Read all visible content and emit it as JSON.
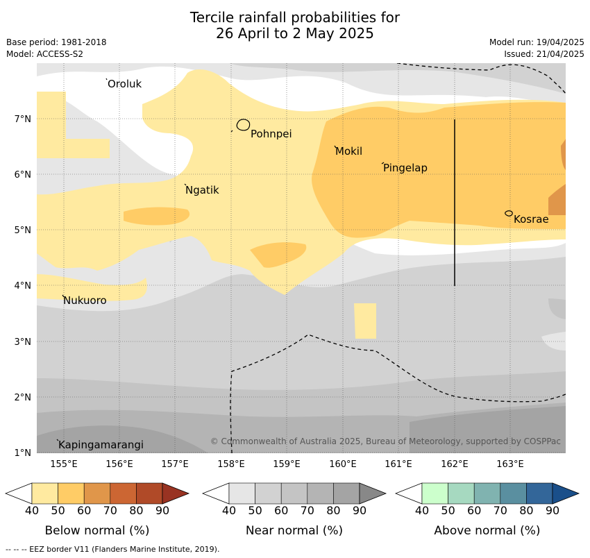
{
  "title": {
    "line1": "Tercile rainfall probabilities for",
    "line2": "26 April to 2 May 2025"
  },
  "meta": {
    "base_period": "Base period: 1981-2018",
    "model": "Model: ACCESS-S2",
    "model_run": "Model run: 19/04/2025",
    "issued": "Issued: 21/04/2025"
  },
  "map": {
    "copyright": "© Commonwealth of Australia 2025, Bureau of Meteorology, supported by COSPPac",
    "lon_ticks": [
      "155°E",
      "156°E",
      "157°E",
      "158°E",
      "159°E",
      "160°E",
      "161°E",
      "162°E",
      "163°E"
    ],
    "lat_ticks": [
      "1°N",
      "2°N",
      "3°N",
      "4°N",
      "5°N",
      "6°N",
      "7°N"
    ],
    "places": [
      {
        "name": "Oroluk",
        "lon": 155.75,
        "lat": 7.65
      },
      {
        "name": "Pohnpei",
        "lon": 158.2,
        "lat": 6.9
      },
      {
        "name": "Mokil",
        "lon": 159.78,
        "lat": 6.67
      },
      {
        "name": "Pingelap",
        "lon": 160.7,
        "lat": 6.2
      },
      {
        "name": "Ngatik",
        "lon": 157.35,
        "lat": 5.78
      },
      {
        "name": "Kosrae",
        "lon": 163.0,
        "lat": 5.32
      },
      {
        "name": "Nukuoro",
        "lon": 154.95,
        "lat": 3.85
      },
      {
        "name": "Kapingamarangi",
        "lon": 154.8,
        "lat": 1.08
      }
    ]
  },
  "colorbars": [
    {
      "label": "Below normal (%)",
      "ticks": [
        "40",
        "50",
        "60",
        "70",
        "80",
        "90"
      ],
      "colors": [
        "#ffffff",
        "#ffeaa0",
        "#ffcc66",
        "#e0964a",
        "#cc6633",
        "#b04a28",
        "#993322"
      ]
    },
    {
      "label": "Near normal (%)",
      "ticks": [
        "40",
        "50",
        "60",
        "70",
        "80",
        "90"
      ],
      "colors": [
        "#ffffff",
        "#e6e6e6",
        "#d2d2d2",
        "#c4c4c4",
        "#b4b4b4",
        "#a4a4a4",
        "#888888"
      ]
    },
    {
      "label": "Above normal (%)",
      "ticks": [
        "40",
        "50",
        "60",
        "70",
        "80",
        "90"
      ],
      "colors": [
        "#ffffff",
        "#ccffcc",
        "#a6d9c0",
        "#80b3b0",
        "#5a8fa0",
        "#336699",
        "#1a4f8a"
      ]
    }
  ],
  "footer": "--  --  -- EEZ border V11 (Flanders Marine Institute, 2019)."
}
